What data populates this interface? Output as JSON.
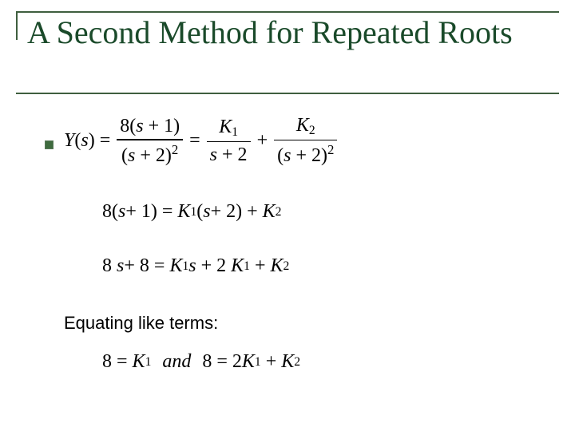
{
  "title": "A Second Method for Repeated Roots",
  "body_label": "Equating like terms:",
  "style": {
    "slide_width": 720,
    "slide_height": 540,
    "title_color": "#1a4a2a",
    "rule_color": "#3f5f3f",
    "bullet_color": "#3f6b3f",
    "background": "#ffffff",
    "title_fontsize": 40,
    "eq_fontsize": 24,
    "body_font": "Arial",
    "body_fontsize": 22
  },
  "eq1": {
    "lhs": "Y",
    "lhs_arg": "s",
    "frac1_num_coeff": "8(",
    "frac1_num_var": "s",
    "frac1_num_plus": "+ 1)",
    "frac1_den_open": "(",
    "frac1_den_var": "s",
    "frac1_den_plus": "+ 2)",
    "frac1_den_pow": "2",
    "k1": "K",
    "k1_sub": "1",
    "k1_den_var": "s",
    "k1_den_plus": "+ 2",
    "k2": "K",
    "k2_sub": "2",
    "k2_den_open": "(",
    "k2_den_var": "s",
    "k2_den_plus": "+ 2)",
    "k2_den_pow": "2"
  },
  "eq2": {
    "lhs_coeff": "8(",
    "lhs_var": "s",
    "lhs_plus": "+ 1)",
    "k1": "K",
    "k1_sub": "1",
    "paren_open": "(",
    "rhs_var": "s",
    "rhs_plus": "+ 2)",
    "plus": "+",
    "k2": "K",
    "k2_sub": "2"
  },
  "eq3": {
    "lhs_a": "8",
    "lhs_s": "s",
    "lhs_plus": "+ 8",
    "k1": "K",
    "k1_sub": "1",
    "rhs_s": "s",
    "plus1": "+ 2",
    "k1b": "K",
    "k1b_sub": "1",
    "plus2": "+",
    "k2": "K",
    "k2_sub": "2"
  },
  "eq4": {
    "a_lhs": "8",
    "a_k": "K",
    "a_k_sub": "1",
    "and": "and",
    "b_lhs": "8",
    "b_coeff": "2",
    "b_k1": "K",
    "b_k1_sub": "1",
    "b_plus": "+",
    "b_k2": "K",
    "b_k2_sub": "2"
  }
}
